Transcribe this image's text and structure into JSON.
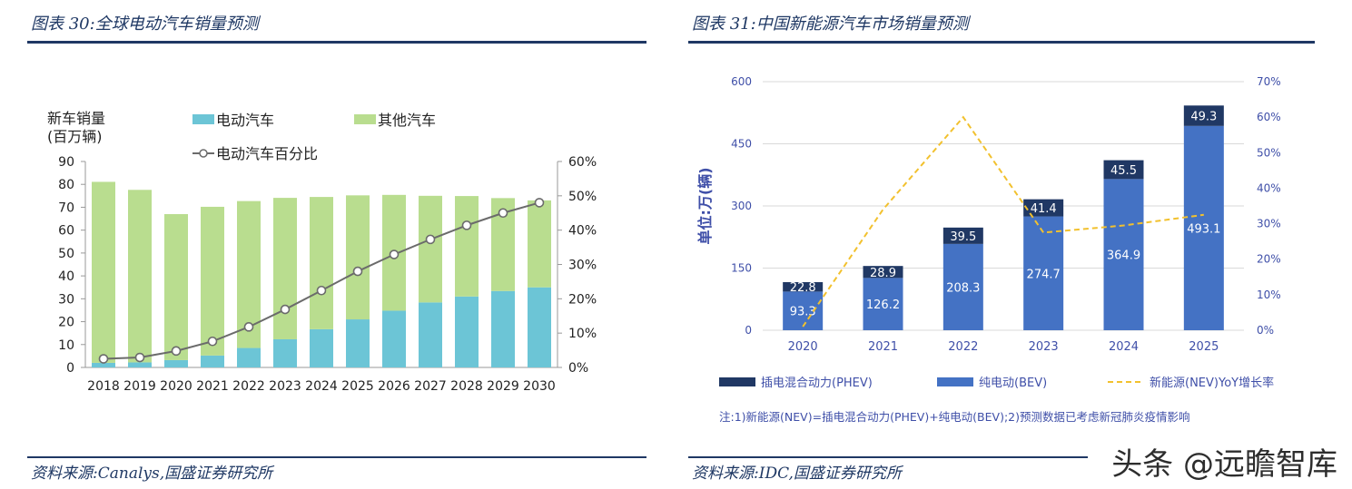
{
  "left_panel": {
    "title": "图表 30:全球电动汽车销量预测",
    "source": "资料来源:Canalys,国盛证券研究所"
  },
  "right_panel": {
    "title": "图表 31:中国新能源汽车市场销量预测",
    "source": "资料来源:IDC,国盛证券研究所",
    "note": "注:1)新能源(NEV)=插电混合动力(PHEV)+纯电动(BEV);2)预测数据已考虑新冠肺炎疫情影响"
  },
  "watermark": "头条 @远瞻智库",
  "chart_data": [
    {
      "type": "bar",
      "stacked": true,
      "ylabel": "新车销量\n(百万辆)",
      "categories": [
        "2018",
        "2019",
        "2020",
        "2021",
        "2022",
        "2023",
        "2024",
        "2025",
        "2026",
        "2027",
        "2028",
        "2029",
        "2030"
      ],
      "ylim": [
        0,
        90
      ],
      "yticks": [
        0,
        10,
        20,
        30,
        40,
        50,
        60,
        70,
        80,
        90
      ],
      "y2lim": [
        0,
        60
      ],
      "y2ticks": [
        "0%",
        "10%",
        "20%",
        "30%",
        "40%",
        "50%",
        "60%"
      ],
      "series": [
        {
          "name": "电动汽车",
          "color": "#6cc5d6",
          "values": [
            2,
            2.2,
            3.2,
            5.2,
            8.5,
            12.3,
            16.7,
            21,
            24.8,
            28.4,
            31,
            33.4,
            35
          ]
        },
        {
          "name": "其他汽车",
          "color": "#b9dd8f",
          "values": [
            79.1,
            75.4,
            63.8,
            65,
            64.2,
            61.8,
            57.8,
            54.2,
            50.6,
            46.6,
            43.9,
            40.6,
            38
          ]
        },
        {
          "name": "电动汽车百分比",
          "type": "line",
          "axis": "right",
          "color": "#6b6b6b",
          "values": [
            2.5,
            2.9,
            4.8,
            7.6,
            11.8,
            16.9,
            22.4,
            28,
            32.9,
            37.3,
            41.4,
            45,
            48
          ]
        }
      ],
      "legend_position": "top"
    },
    {
      "type": "bar",
      "stacked": true,
      "ylabel": "单位:万(辆)",
      "categories": [
        "2020",
        "2021",
        "2022",
        "2023",
        "2024",
        "2025"
      ],
      "ylim": [
        0,
        600
      ],
      "yticks": [
        0,
        150,
        300,
        450,
        600
      ],
      "y2lim": [
        0,
        70
      ],
      "y2ticks": [
        "0%",
        "10%",
        "20%",
        "30%",
        "40%",
        "50%",
        "60%",
        "70%"
      ],
      "series": [
        {
          "name": "纯电动(BEV)",
          "color": "#4472c4",
          "values": [
            93.3,
            126.2,
            208.3,
            274.7,
            364.9,
            493.1
          ],
          "labels": [
            "93.3",
            "126.2",
            "208.3",
            "274.7",
            "364.9",
            "493.1"
          ]
        },
        {
          "name": "插电混合动力(PHEV)",
          "color": "#203864",
          "values": [
            22.8,
            28.9,
            39.5,
            41.4,
            45.5,
            49.3
          ],
          "labels": [
            "22.8",
            "28.9",
            "39.5",
            "41.4",
            "45.5",
            "49.3"
          ]
        },
        {
          "name": "新能源(NEV)YoY增长率",
          "type": "line",
          "dashed": true,
          "axis": "right",
          "color": "#f2c12e",
          "values": [
            1,
            34,
            60,
            27.5,
            29.5,
            32.5
          ]
        }
      ],
      "legend_order": [
        "插电混合动力(PHEV)",
        "纯电动(BEV)",
        "新能源(NEV)YoY增长率"
      ],
      "legend_position": "bottom"
    }
  ]
}
